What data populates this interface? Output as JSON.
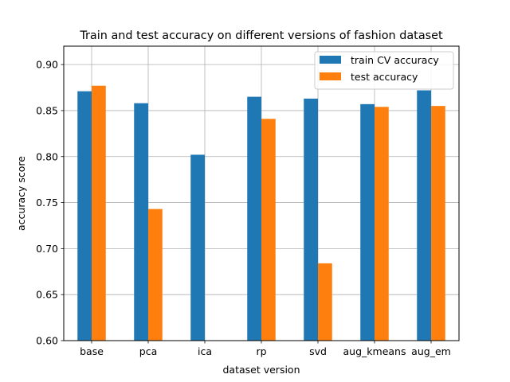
{
  "chart_data": {
    "type": "bar",
    "title": "Train and test accuracy on different versions of fashion dataset",
    "xlabel": "dataset version",
    "ylabel": "accuracy score",
    "categories": [
      "base",
      "pca",
      "ica",
      "rp",
      "svd",
      "aug_kmeans",
      "aug_em"
    ],
    "series": [
      {
        "name": "train CV accuracy",
        "color": "#1f77b4",
        "values": [
          0.871,
          0.858,
          0.802,
          0.865,
          0.863,
          0.857,
          0.872
        ]
      },
      {
        "name": "test accuracy",
        "color": "#ff7f0e",
        "values": [
          0.877,
          0.743,
          0.6,
          0.841,
          0.684,
          0.854,
          0.855
        ]
      }
    ],
    "ylim": [
      0.6,
      0.92
    ],
    "yticks": [
      "0.60",
      "0.65",
      "0.70",
      "0.75",
      "0.80",
      "0.85",
      "0.90"
    ],
    "grid": true,
    "legend_position": "top-right"
  }
}
